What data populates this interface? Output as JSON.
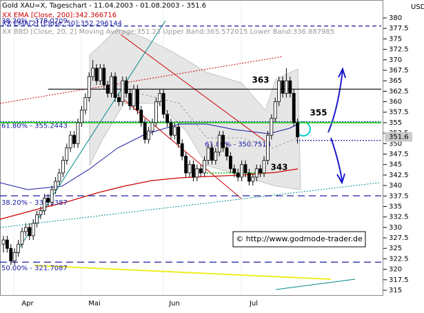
{
  "chart_data": {
    "type": "candlestick",
    "title": "Gold XAU=X, Tageschart - 11.04.2003 - 01.08.2003 - 351.6",
    "indicators": [
      {
        "text": "XX EMA [Close, 200]:342.366716",
        "color": "#cc0000"
      },
      {
        "text": "XX EMA[2] [Close, 50]:352.296144",
        "color": "#1a1aa0"
      },
      {
        "text": "XX BBD [Close, 20, 2] Moving Average:351.23 Upper Band:365.572015 Lower Band:336.887985",
        "color": "#999999"
      }
    ],
    "unit": "USD",
    "copyright": "© http://www.godmode-trader.de",
    "xticks": [
      "Apr",
      "Mai",
      "Jun",
      "Jul"
    ],
    "ylim": [
      315,
      380
    ],
    "yticks": [
      315,
      317.5,
      320,
      322.5,
      325,
      327.5,
      330,
      332.5,
      335,
      337.5,
      340,
      342.5,
      345,
      347.5,
      350,
      352.5,
      355,
      357.5,
      360,
      362.5,
      365,
      367.5,
      370,
      372.5,
      375,
      377.5,
      380
    ],
    "price_tag": 351.6,
    "ohlc": [
      [
        326,
        328,
        324,
        327
      ],
      [
        327,
        328,
        324,
        325
      ],
      [
        325,
        326,
        321,
        322
      ],
      [
        322,
        325,
        321,
        324
      ],
      [
        324,
        327,
        323,
        326
      ],
      [
        326,
        330,
        325,
        329
      ],
      [
        329,
        331,
        328,
        330
      ],
      [
        330,
        331,
        327,
        328
      ],
      [
        328,
        332,
        327,
        331
      ],
      [
        331,
        334,
        330,
        333
      ],
      [
        333,
        335,
        332,
        334
      ],
      [
        334,
        338,
        333,
        337
      ],
      [
        337,
        338,
        335,
        336
      ],
      [
        336,
        340,
        335,
        339
      ],
      [
        339,
        342,
        338,
        341
      ],
      [
        341,
        344,
        340,
        343
      ],
      [
        343,
        347,
        342,
        346
      ],
      [
        346,
        350,
        345,
        349
      ],
      [
        349,
        353,
        348,
        352
      ],
      [
        352,
        353,
        349,
        350
      ],
      [
        350,
        356,
        349,
        355
      ],
      [
        355,
        359,
        354,
        358
      ],
      [
        358,
        362,
        357,
        361
      ],
      [
        361,
        367,
        360,
        366
      ],
      [
        366,
        370,
        365,
        368
      ],
      [
        368,
        369,
        364,
        365
      ],
      [
        365,
        369,
        364,
        368
      ],
      [
        368,
        369,
        363,
        364
      ],
      [
        364,
        365,
        361,
        362
      ],
      [
        362,
        367,
        361,
        366
      ],
      [
        366,
        367,
        360,
        361
      ],
      [
        361,
        362,
        359,
        360
      ],
      [
        360,
        366,
        359,
        365
      ],
      [
        365,
        366,
        361,
        362
      ],
      [
        362,
        363,
        358,
        359
      ],
      [
        359,
        364,
        358,
        363
      ],
      [
        363,
        364,
        357,
        358
      ],
      [
        358,
        359,
        354,
        355
      ],
      [
        355,
        356,
        350,
        351
      ],
      [
        351,
        354,
        350,
        353
      ],
      [
        353,
        356,
        352,
        355
      ],
      [
        355,
        361,
        354,
        360
      ],
      [
        360,
        363,
        359,
        362
      ],
      [
        362,
        363,
        356,
        357
      ],
      [
        357,
        358,
        354,
        355
      ],
      [
        355,
        356,
        351,
        352
      ],
      [
        352,
        355,
        351,
        354
      ],
      [
        354,
        355,
        349,
        350
      ],
      [
        350,
        351,
        346,
        347
      ],
      [
        347,
        348,
        342,
        343
      ],
      [
        343,
        346,
        342,
        345
      ],
      [
        345,
        346,
        341,
        342
      ],
      [
        342,
        345,
        341,
        344
      ],
      [
        344,
        345,
        342,
        343
      ],
      [
        343,
        347,
        342,
        346
      ],
      [
        346,
        350,
        345,
        349
      ],
      [
        349,
        350,
        345,
        346
      ],
      [
        346,
        349,
        345,
        348
      ],
      [
        348,
        353,
        347,
        352
      ],
      [
        352,
        353,
        348,
        349
      ],
      [
        349,
        350,
        346,
        347
      ],
      [
        347,
        348,
        343,
        344
      ],
      [
        344,
        345,
        342,
        343
      ],
      [
        343,
        344,
        341,
        342
      ],
      [
        342,
        346,
        341,
        345
      ],
      [
        345,
        346,
        342,
        343
      ],
      [
        343,
        344,
        340,
        341
      ],
      [
        341,
        343,
        340,
        342
      ],
      [
        342,
        345,
        341,
        344
      ],
      [
        344,
        345,
        342,
        343
      ],
      [
        343,
        347,
        342,
        346
      ],
      [
        346,
        353,
        345,
        352
      ],
      [
        352,
        357,
        351,
        356
      ],
      [
        356,
        361,
        355,
        360
      ],
      [
        360,
        366,
        359,
        365
      ],
      [
        365,
        366,
        361,
        362
      ],
      [
        362,
        368,
        361,
        365
      ],
      [
        365,
        366,
        361,
        362
      ],
      [
        362,
        363,
        354,
        355
      ],
      [
        355,
        356,
        350,
        351.6
      ]
    ],
    "levels": [
      {
        "value": 378.0709,
        "label": "38.20% - 378.0709",
        "color": "#1a1aa0",
        "dash": "6,4"
      },
      {
        "value": 363,
        "label": "363",
        "color": "#000000",
        "dash": "none"
      },
      {
        "value": 355.2443,
        "label": "61.80% - 355.2443",
        "color": "#1a1aa0",
        "dash": "2,2"
      },
      {
        "value": 355,
        "label": "355",
        "color": "#33cc33",
        "dash": "none"
      },
      {
        "value": 350.7513,
        "label": "61.80% - 350.7513",
        "color": "#1a1aa0",
        "dash": "2,2"
      },
      {
        "value": 343,
        "label": "343",
        "color": "#33cc33",
        "dash": "2,2"
      },
      {
        "value": 337.5387,
        "label": "38.20% - 337.5387",
        "color": "#1a1aa0",
        "dash": "10,6"
      },
      {
        "value": 321.7087,
        "label": "50.00% - 321.7087",
        "color": "#1a1aa0",
        "dash": "10,6"
      }
    ]
  }
}
